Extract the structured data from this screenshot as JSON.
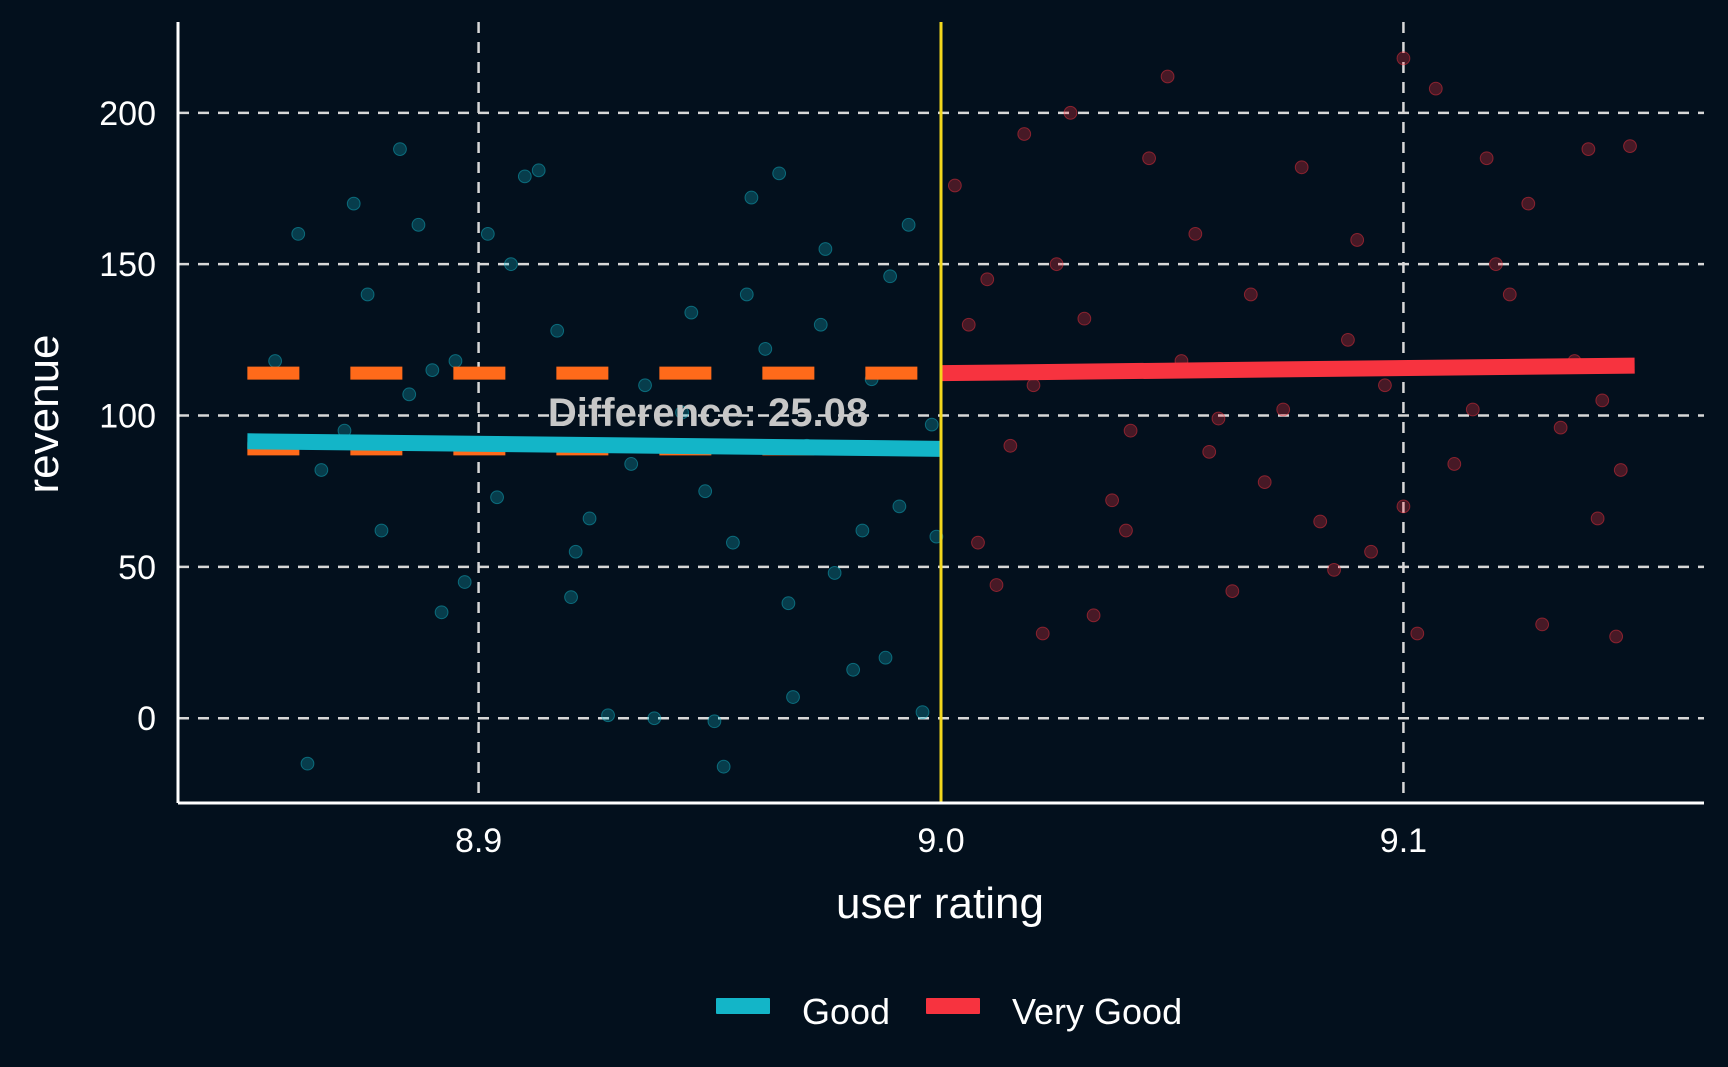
{
  "chart_data": {
    "type": "scatter",
    "title": "",
    "xlabel": "user rating",
    "ylabel": "revenue",
    "xlim": [
      8.835,
      9.165
    ],
    "ylim": [
      -28,
      230
    ],
    "x_ticks": [
      8.9,
      9.0,
      9.1
    ],
    "x_tick_labels": [
      "8.9",
      "9.0",
      "9.1"
    ],
    "y_ticks": [
      0,
      50,
      100,
      150,
      200
    ],
    "y_tick_labels": [
      "0",
      "50",
      "100",
      "150",
      "200"
    ],
    "grid": true,
    "legend_position": "bottom",
    "cutoff": 9.0,
    "annotation": "Difference: 25.08",
    "series": [
      {
        "name": "Good",
        "color": "#13b5c8",
        "x_range": [
          8.85,
          9.0
        ],
        "points": [
          [
            8.861,
            160
          ],
          [
            8.863,
            -15
          ],
          [
            8.873,
            170
          ],
          [
            8.883,
            188
          ],
          [
            8.887,
            163
          ],
          [
            8.89,
            115
          ],
          [
            8.895,
            118
          ],
          [
            8.902,
            160
          ],
          [
            8.91,
            179
          ],
          [
            8.913,
            181
          ],
          [
            8.92,
            40
          ],
          [
            8.928,
            1
          ],
          [
            8.938,
            0
          ],
          [
            8.946,
            134
          ],
          [
            8.951,
            -1
          ],
          [
            8.953,
            -16
          ],
          [
            8.959,
            172
          ],
          [
            8.965,
            180
          ],
          [
            8.968,
            7
          ],
          [
            8.975,
            155
          ],
          [
            8.981,
            16
          ],
          [
            8.988,
            20
          ],
          [
            8.993,
            163
          ],
          [
            8.996,
            2
          ],
          [
            8.871,
            95
          ],
          [
            8.879,
            62
          ],
          [
            8.885,
            107
          ],
          [
            8.897,
            45
          ],
          [
            8.904,
            73
          ],
          [
            8.917,
            128
          ],
          [
            8.924,
            66
          ],
          [
            8.933,
            84
          ],
          [
            8.944,
            101
          ],
          [
            8.955,
            58
          ],
          [
            8.962,
            122
          ],
          [
            8.971,
            90
          ],
          [
            8.977,
            48
          ],
          [
            8.985,
            112
          ],
          [
            8.991,
            70
          ],
          [
            8.998,
            97
          ],
          [
            8.856,
            118
          ],
          [
            8.866,
            82
          ],
          [
            8.876,
            140
          ],
          [
            8.892,
            35
          ],
          [
            8.907,
            150
          ],
          [
            8.921,
            55
          ],
          [
            8.936,
            110
          ],
          [
            8.949,
            75
          ],
          [
            8.958,
            140
          ],
          [
            8.967,
            38
          ],
          [
            8.974,
            130
          ],
          [
            8.983,
            62
          ],
          [
            8.989,
            146
          ],
          [
            8.999,
            60
          ]
        ],
        "fit": [
          [
            8.85,
            91.5
          ],
          [
            9.0,
            89.0
          ]
        ]
      },
      {
        "name": "Very Good",
        "color": "#f7333f",
        "x_range": [
          9.0,
          9.15
        ],
        "points": [
          [
            9.003,
            176
          ],
          [
            9.012,
            44
          ],
          [
            9.018,
            193
          ],
          [
            9.022,
            28
          ],
          [
            9.028,
            200
          ],
          [
            9.033,
            34
          ],
          [
            9.045,
            185
          ],
          [
            9.049,
            212
          ],
          [
            9.063,
            42
          ],
          [
            9.078,
            182
          ],
          [
            9.085,
            49
          ],
          [
            9.1,
            218
          ],
          [
            9.103,
            28
          ],
          [
            9.107,
            208
          ],
          [
            9.118,
            185
          ],
          [
            9.13,
            31
          ],
          [
            9.14,
            188
          ],
          [
            9.146,
            27
          ],
          [
            9.149,
            189
          ],
          [
            9.006,
            130
          ],
          [
            9.015,
            90
          ],
          [
            9.025,
            150
          ],
          [
            9.037,
            72
          ],
          [
            9.052,
            118
          ],
          [
            9.058,
            88
          ],
          [
            9.067,
            140
          ],
          [
            9.074,
            102
          ],
          [
            9.082,
            65
          ],
          [
            9.09,
            158
          ],
          [
            9.096,
            110
          ],
          [
            9.111,
            84
          ],
          [
            9.123,
            140
          ],
          [
            9.134,
            96
          ],
          [
            9.142,
            66
          ],
          [
            9.008,
            58
          ],
          [
            9.02,
            110
          ],
          [
            9.031,
            132
          ],
          [
            9.041,
            95
          ],
          [
            9.055,
            160
          ],
          [
            9.07,
            78
          ],
          [
            9.088,
            125
          ],
          [
            9.093,
            55
          ],
          [
            9.115,
            102
          ],
          [
            9.127,
            170
          ],
          [
            9.137,
            118
          ],
          [
            9.147,
            82
          ],
          [
            9.01,
            145
          ],
          [
            9.04,
            62
          ],
          [
            9.06,
            99
          ],
          [
            9.1,
            70
          ],
          [
            9.12,
            150
          ],
          [
            9.143,
            105
          ]
        ],
        "fit": [
          [
            9.0,
            114.0
          ],
          [
            9.15,
            116.5
          ]
        ]
      }
    ],
    "reference_lines": [
      {
        "from_x": 8.85,
        "to_x": 9.0,
        "y": 114.0,
        "color": "#ff6a1a",
        "style": "dashed"
      },
      {
        "from_x": 8.85,
        "to_x": 9.0,
        "y": 89.0,
        "color": "#ff6a1a",
        "style": "dashed"
      }
    ],
    "cutoff_color": "#f3d81d",
    "grid_color": "#d8d8d8",
    "axis_color": "#ffffff"
  }
}
